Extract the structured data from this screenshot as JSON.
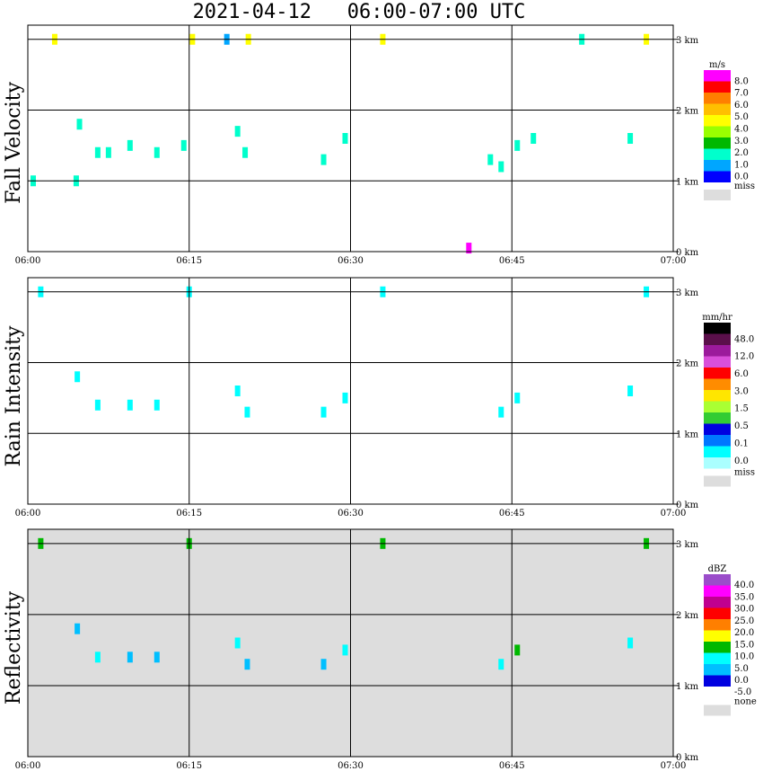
{
  "title": "2021-04-12   06:00-07:00 UTC",
  "chart_data": [
    {
      "type": "heatmap",
      "name": "Fall Velocity",
      "ylabel": "Fall Velocity",
      "x_ticks": [
        "06:00",
        "06:15",
        "06:30",
        "06:45",
        "07:00"
      ],
      "y_ticks": [
        "0 km",
        "1 km",
        "2 km",
        "3 km"
      ],
      "xlim": [
        "06:00",
        "07:00"
      ],
      "ylim_km": [
        0,
        3.2
      ],
      "background": "#ffffff",
      "grid": true,
      "colorbar": {
        "unit": "m/s",
        "labels": [
          "8.0",
          "7.0",
          "6.0",
          "5.0",
          "4.0",
          "3.0",
          "2.0",
          "1.0",
          "0.0"
        ],
        "colors": [
          "#ff00ff",
          "#ff0000",
          "#ff7f00",
          "#ffbf00",
          "#ffff00",
          "#99ff00",
          "#00b800",
          "#00ffcc",
          "#00a6ff",
          "#0000ff"
        ],
        "miss_label": "miss",
        "miss_color": "#dddddd"
      },
      "echoes": [
        {
          "t": 0.5,
          "h": 1.0,
          "v": 1.5
        },
        {
          "t": 2.5,
          "h": 3.0,
          "v": 4.5
        },
        {
          "t": 4.5,
          "h": 1.0,
          "v": 1.5
        },
        {
          "t": 4.8,
          "h": 1.8,
          "v": 0.8
        },
        {
          "t": 6.5,
          "h": 1.4,
          "v": 0.6
        },
        {
          "t": 7.5,
          "h": 1.4,
          "v": 0.7
        },
        {
          "t": 9.5,
          "h": 1.5,
          "v": 0.8
        },
        {
          "t": 12.0,
          "h": 1.4,
          "v": 0.6
        },
        {
          "t": 14.5,
          "h": 1.5,
          "v": 0.8
        },
        {
          "t": 15.3,
          "h": 3.0,
          "v": 4.5
        },
        {
          "t": 18.5,
          "h": 3.0,
          "v": 0.5
        },
        {
          "t": 19.5,
          "h": 1.7,
          "v": 0.9
        },
        {
          "t": 20.2,
          "h": 1.4,
          "v": 0.7
        },
        {
          "t": 20.5,
          "h": 3.0,
          "v": 4.2
        },
        {
          "t": 27.5,
          "h": 1.3,
          "v": 0.8
        },
        {
          "t": 29.5,
          "h": 1.6,
          "v": 0.7
        },
        {
          "t": 33.0,
          "h": 3.0,
          "v": 4.5
        },
        {
          "t": 41.0,
          "h": 0.05,
          "v": 8.0
        },
        {
          "t": 43.0,
          "h": 1.3,
          "v": 0.6
        },
        {
          "t": 44.0,
          "h": 1.2,
          "v": 1.4
        },
        {
          "t": 45.5,
          "h": 1.5,
          "v": 0.9
        },
        {
          "t": 47.0,
          "h": 1.6,
          "v": 0.6
        },
        {
          "t": 51.5,
          "h": 3.0,
          "v": 1.0
        },
        {
          "t": 56.0,
          "h": 1.6,
          "v": 0.8
        },
        {
          "t": 57.5,
          "h": 3.0,
          "v": 4.5
        }
      ]
    },
    {
      "type": "heatmap",
      "name": "Rain Intensity",
      "ylabel": "Rain Intensity",
      "x_ticks": [
        "06:00",
        "06:15",
        "06:30",
        "06:45",
        "07:00"
      ],
      "y_ticks": [
        "0 km",
        "1 km",
        "2 km",
        "3 km"
      ],
      "xlim": [
        "06:00",
        "07:00"
      ],
      "ylim_km": [
        0,
        3.2
      ],
      "background": "#ffffff",
      "grid": true,
      "colorbar": {
        "unit": "mm/hr",
        "labels": [
          "48.0",
          "12.0",
          "6.0",
          "3.0",
          "1.5",
          "0.5",
          "0.1",
          "0.0"
        ],
        "colors": [
          "#000000",
          "#5a0f4a",
          "#9b1a9b",
          "#d94fd9",
          "#ff0000",
          "#ff8c00",
          "#ffe600",
          "#aaff33",
          "#33cc33",
          "#0000e0",
          "#0077ff",
          "#00ffff",
          "#aaffff"
        ],
        "miss_label": "miss",
        "miss_color": "#dddddd"
      },
      "echoes": [
        {
          "t": 1.2,
          "h": 3.0,
          "v": 0.1
        },
        {
          "t": 4.6,
          "h": 1.8,
          "v": 0.1
        },
        {
          "t": 6.5,
          "h": 1.4,
          "v": 0.1
        },
        {
          "t": 9.5,
          "h": 1.4,
          "v": 0.1
        },
        {
          "t": 12.0,
          "h": 1.4,
          "v": 0.1
        },
        {
          "t": 15.0,
          "h": 3.0,
          "v": 0.1
        },
        {
          "t": 19.5,
          "h": 1.6,
          "v": 0.2
        },
        {
          "t": 20.4,
          "h": 1.3,
          "v": 0.2
        },
        {
          "t": 27.5,
          "h": 1.3,
          "v": 0.1
        },
        {
          "t": 29.5,
          "h": 1.5,
          "v": 0.2
        },
        {
          "t": 33.0,
          "h": 3.0,
          "v": 0.1
        },
        {
          "t": 44.0,
          "h": 1.3,
          "v": 0.5
        },
        {
          "t": 45.5,
          "h": 1.5,
          "v": 0.6
        },
        {
          "t": 56.0,
          "h": 1.6,
          "v": 0.1
        },
        {
          "t": 57.5,
          "h": 3.0,
          "v": 0.1
        }
      ]
    },
    {
      "type": "heatmap",
      "name": "Reflectivity",
      "ylabel": "Reflectivity",
      "x_ticks": [
        "06:00",
        "06:15",
        "06:30",
        "06:45",
        "07:00"
      ],
      "y_ticks": [
        "0 km",
        "1 km",
        "2 km",
        "3 km"
      ],
      "xlim": [
        "06:00",
        "07:00"
      ],
      "ylim_km": [
        0,
        3.2
      ],
      "background": "#dddddd",
      "grid": true,
      "colorbar": {
        "unit": "dBZ",
        "labels": [
          "40.0",
          "35.0",
          "30.0",
          "25.0",
          "20.0",
          "15.0",
          "10.0",
          "5.0",
          "0.0",
          "-5.0"
        ],
        "colors": [
          "#9b4dca",
          "#ff00ff",
          "#c00090",
          "#ff0000",
          "#ff7f00",
          "#ffff00",
          "#00b800",
          "#00ffff",
          "#00bfff",
          "#0000e0",
          "#ffffff"
        ],
        "miss_label": "none",
        "miss_color": "#dddddd"
      },
      "echoes": [
        {
          "t": 1.2,
          "h": 3.0,
          "v": 8
        },
        {
          "t": 4.6,
          "h": 1.8,
          "v": -2
        },
        {
          "t": 6.5,
          "h": 1.4,
          "v": 6
        },
        {
          "t": 9.5,
          "h": 1.4,
          "v": -2
        },
        {
          "t": 12.0,
          "h": 1.4,
          "v": -2
        },
        {
          "t": 15.0,
          "h": 3.0,
          "v": 8
        },
        {
          "t": 19.5,
          "h": 1.6,
          "v": 6
        },
        {
          "t": 20.4,
          "h": 1.3,
          "v": -2
        },
        {
          "t": 27.5,
          "h": 1.3,
          "v": -2
        },
        {
          "t": 29.5,
          "h": 1.5,
          "v": 4
        },
        {
          "t": 33.0,
          "h": 3.0,
          "v": 8
        },
        {
          "t": 44.0,
          "h": 1.3,
          "v": 4
        },
        {
          "t": 45.5,
          "h": 1.5,
          "v": 8
        },
        {
          "t": 56.0,
          "h": 1.6,
          "v": 3
        },
        {
          "t": 57.5,
          "h": 3.0,
          "v": 8
        }
      ]
    }
  ]
}
